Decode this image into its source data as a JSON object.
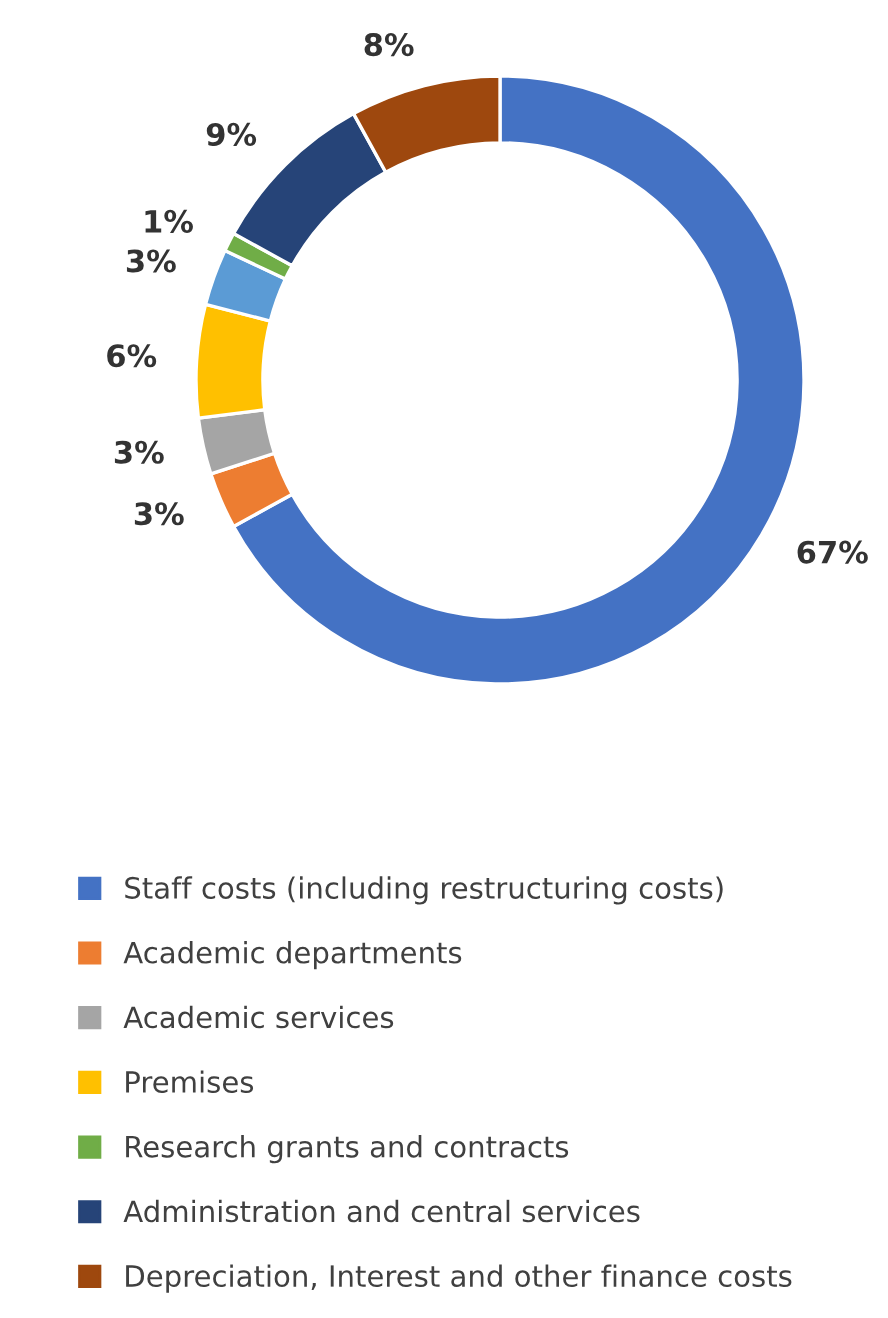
{
  "chart_data": {
    "type": "donut",
    "categories": [
      "Staff costs (including restructuring costs)",
      "Academic departments",
      "Academic services",
      "Premises",
      null,
      "Research grants and contracts",
      "Administration and central services",
      "Depreciation, Interest and other finance costs"
    ],
    "values": [
      67,
      3,
      3,
      6,
      3,
      1,
      9,
      8
    ],
    "value_labels": [
      "67%",
      "3%",
      "3%",
      "6%",
      "3%",
      "1%",
      "9%",
      "8%"
    ],
    "colors": [
      "#4472c4",
      "#ed7d31",
      "#a5a5a5",
      "#ffc000",
      "#5b9bd5",
      "#70ad47",
      "#264478",
      "#9e480e"
    ],
    "legend": "bottom"
  }
}
